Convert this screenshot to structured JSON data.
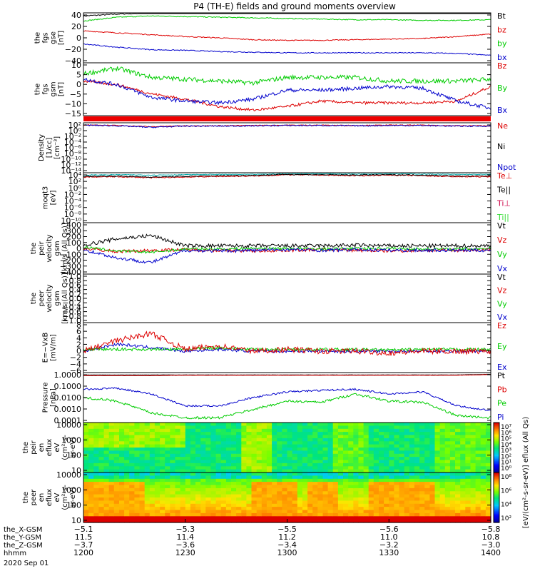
{
  "title": "P4 (TH-E) fields and ground moments overview",
  "colors": {
    "black": "#000000",
    "red": "#dd0000",
    "green": "#00cc00",
    "blue": "#0000cc",
    "light_green": "#33dd33",
    "teal": "#00aaaa"
  },
  "panels": [
    {
      "id": "fgs-gse",
      "ylabel": [
        "the",
        "fgs",
        "gse",
        "[nT]"
      ],
      "ticks": [
        "40",
        "20",
        "0",
        "−20",
        "−40"
      ],
      "legend": [
        {
          "label": "Bt",
          "color": "#000000"
        },
        {
          "label": "bz",
          "color": "#dd0000"
        },
        {
          "label": "by",
          "color": "#00cc00"
        },
        {
          "label": "bx",
          "color": "#0000cc"
        }
      ]
    },
    {
      "id": "fgs-gsm",
      "ylabel": [
        "the",
        "fgs",
        "gsm",
        "[nT]"
      ],
      "ticks": [
        "10",
        "5",
        "0",
        "−5",
        "−10",
        "−15"
      ],
      "legend": [
        {
          "label": "Bz",
          "color": "#dd0000"
        },
        {
          "label": "By",
          "color": "#00cc00"
        },
        {
          "label": "Bx",
          "color": "#0000cc"
        }
      ]
    },
    {
      "id": "density",
      "ylabel": [
        "Density",
        "[1/cc]",
        "[cm⁻³]"
      ],
      "ticks": [
        "10²",
        "10⁰",
        "10⁻²",
        "10⁻⁴",
        "10⁻⁶",
        "10⁻⁸",
        "10⁻¹⁰",
        "10⁻¹²",
        "10⁻¹⁴"
      ],
      "legend": [
        {
          "label": "Ne",
          "color": "#dd0000"
        },
        {
          "label": "Ni",
          "color": "#000000"
        },
        {
          "label": "Npot",
          "color": "#0000cc"
        }
      ]
    },
    {
      "id": "temperature",
      "ylabel": [
        "moqt3",
        "[eV]"
      ],
      "ticks": [
        "10⁴",
        "10²",
        "10⁰",
        "10⁻²",
        "10⁻⁴",
        "10⁻⁶",
        "10⁻⁸",
        "10⁻¹⁰"
      ],
      "legend": [
        {
          "label": "Te⊥",
          "color": "#dd0000"
        },
        {
          "label": "Te||",
          "color": "#000000"
        },
        {
          "label": "Ti⊥",
          "color": "#cc0044"
        },
        {
          "label": "Ti||",
          "color": "#33dd33"
        }
      ]
    },
    {
      "id": "peir-velocity",
      "ylabel": [
        "the",
        "peir",
        "velocity",
        "gsm",
        "[km/s (All Qs)]"
      ],
      "ticks": [
        "400",
        "300",
        "200",
        "100",
        "0",
        "−100",
        "−200",
        "−300",
        "−400"
      ],
      "legend": [
        {
          "label": "Vt",
          "color": "#000000"
        },
        {
          "label": "Vz",
          "color": "#dd0000"
        },
        {
          "label": "Vy",
          "color": "#00cc00"
        },
        {
          "label": "Vx",
          "color": "#0000cc"
        }
      ]
    },
    {
      "id": "peer-velocity",
      "ylabel": [
        "the",
        "peer",
        "velocity",
        "gsm",
        "[km/s (All Qs)]"
      ],
      "ticks": [
        "1.0",
        "0.8",
        "0.6",
        "0.4",
        "0.2",
        "0.0",
        "−0.2",
        "−0.4",
        "−0.6",
        "−0.8",
        "−1.0"
      ],
      "legend": [
        {
          "label": "Vt",
          "color": "#000000"
        },
        {
          "label": "Vz",
          "color": "#dd0000"
        },
        {
          "label": "Vy",
          "color": "#00cc00"
        },
        {
          "label": "Vx",
          "color": "#0000cc"
        }
      ]
    },
    {
      "id": "efield",
      "ylabel": [
        "E=−VxB",
        "[mV/m]"
      ],
      "ticks": [
        "8",
        "6",
        "4",
        "2",
        "0",
        "−2",
        "−4",
        "−6"
      ],
      "legend": [
        {
          "label": "Ez",
          "color": "#dd0000"
        },
        {
          "label": "Ey",
          "color": "#00cc00"
        },
        {
          "label": "Ex",
          "color": "#0000cc"
        }
      ]
    },
    {
      "id": "pressure",
      "ylabel": [
        "Pressure",
        "[nPa]"
      ],
      "ticks": [
        "1.0000",
        "0.1000",
        "0.0100",
        "0.0010",
        "0.0001"
      ],
      "legend": [
        {
          "label": "Pt",
          "color": "#000000"
        },
        {
          "label": "Pb",
          "color": "#dd0000"
        },
        {
          "label": "Pe",
          "color": "#00cc00"
        },
        {
          "label": "Pi",
          "color": "#0000cc"
        }
      ]
    },
    {
      "id": "peir-spectrogram",
      "ylabel": [
        "the",
        "peir",
        "en",
        "eflux",
        "eV",
        "(cm²-s-",
        "sr-eV)"
      ],
      "ticks": [
        "10000",
        "1000",
        "100",
        "10"
      ]
    },
    {
      "id": "peer-spectrogram",
      "ylabel": [
        "the",
        "peer",
        "en",
        "eflux",
        "eV",
        "(cm²-s-",
        "sr-eV)"
      ],
      "ticks": [
        "10000",
        "1000",
        "100",
        "10"
      ]
    }
  ],
  "colorbars": [
    {
      "ticks": [
        "10⁷",
        "10⁶",
        "10⁵",
        "10⁴",
        "10³",
        "10²",
        "10¹",
        "10⁰"
      ]
    },
    {
      "ticks": [
        "10⁸",
        "10⁶",
        "10⁴",
        "10²"
      ]
    }
  ],
  "colorbar_label": "[eV/(cm²-s-sr-eV)] eflux (All Qs)",
  "xaxis": {
    "rows": [
      {
        "label": "the_X-GSM",
        "values": [
          "−5.1",
          "−5.3",
          "−5.5",
          "−5.6",
          "−5.8"
        ]
      },
      {
        "label": "the_Y-GSM",
        "values": [
          "11.5",
          "11.4",
          "11.2",
          "11.0",
          "10.8"
        ]
      },
      {
        "label": "the_Z-GSM",
        "values": [
          "−3.7",
          "−3.6",
          "−3.4",
          "−3.2",
          "−3.0"
        ]
      },
      {
        "label": "hhmm",
        "values": [
          "1200",
          "1230",
          "1300",
          "1330",
          "1400"
        ]
      }
    ],
    "date": "2020 Sep 01"
  },
  "chart_data": {
    "type": "line",
    "x": [
      "1200",
      "1210",
      "1220",
      "1230",
      "1240",
      "1250",
      "1300",
      "1310",
      "1320",
      "1330",
      "1340",
      "1350",
      "1400"
    ],
    "series": [
      {
        "name": "Bt",
        "values": [
          35,
          38,
          40,
          40,
          41,
          41,
          41,
          41,
          41,
          41,
          41,
          41,
          41
        ]
      },
      {
        "name": "bz",
        "values": [
          11,
          8,
          5,
          2,
          0,
          -3,
          -4,
          -4,
          -3,
          -2,
          -1,
          2,
          6
        ]
      },
      {
        "name": "by",
        "values": [
          27,
          33,
          35,
          34,
          33,
          32,
          31,
          30,
          29,
          29,
          28,
          28,
          29
        ]
      },
      {
        "name": "bx",
        "values": [
          -10,
          -15,
          -19,
          -20,
          -22,
          -23,
          -24,
          -24,
          -24,
          -24,
          -24,
          -25,
          -28
        ]
      },
      {
        "name": "Bz",
        "values": [
          2,
          0,
          -5,
          -8,
          -12,
          -14,
          -12,
          -9,
          -10,
          -10,
          -10,
          -9,
          -1
        ]
      },
      {
        "name": "By",
        "values": [
          6,
          9,
          4,
          3,
          2,
          1,
          4,
          4,
          4,
          2,
          2,
          2,
          3
        ]
      },
      {
        "name": "Bx",
        "values": [
          3,
          0,
          -7,
          -9,
          -10,
          -8,
          -3,
          -3,
          -2,
          -1,
          -2,
          -9,
          -13
        ]
      },
      {
        "name": "Pt",
        "values": [
          0.8,
          0.8,
          0.8,
          0.8,
          0.8,
          0.8,
          0.8,
          0.8,
          0.8,
          0.8,
          0.8,
          0.8,
          0.9
        ]
      },
      {
        "name": "Pb",
        "values": [
          0.7,
          0.7,
          0.7,
          0.75,
          0.75,
          0.75,
          0.75,
          0.75,
          0.75,
          0.75,
          0.75,
          0.75,
          0.85
        ]
      },
      {
        "name": "Pi",
        "values": [
          0.05,
          0.06,
          0.02,
          0.002,
          0.002,
          0.01,
          0.03,
          0.04,
          0.05,
          0.02,
          0.03,
          0.002,
          0.0008
        ]
      },
      {
        "name": "Pe",
        "values": [
          0.01,
          0.005,
          0.0005,
          0.0002,
          0.0002,
          0.001,
          0.005,
          0.004,
          0.02,
          0.005,
          0.004,
          0.0003,
          0.0002
        ]
      }
    ],
    "xlabel": "hhmm",
    "ylabel": ""
  }
}
